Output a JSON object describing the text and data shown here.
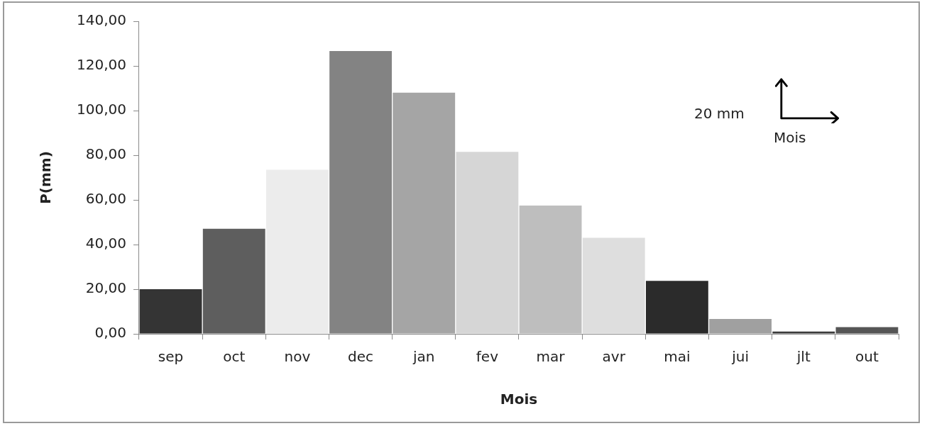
{
  "chart_data": {
    "type": "bar",
    "xlabel": "Mois",
    "ylabel": "P(mm)",
    "categories": [
      "sep",
      "oct",
      "nov",
      "dec",
      "jan",
      "fev",
      "mar",
      "avr",
      "mai",
      "jui",
      "jlt",
      "out"
    ],
    "values": [
      20.0,
      47.1,
      73.5,
      126.7,
      108.0,
      81.5,
      57.5,
      43.0,
      23.7,
      6.7,
      1.0,
      3.0
    ],
    "colors": [
      "#343434",
      "#5e5e5e",
      "#ececec",
      "#838383",
      "#a5a5a5",
      "#d6d6d6",
      "#bebebe",
      "#dedede",
      "#2b2b2b",
      "#a0a0a0",
      "#3a3a3a",
      "#555555"
    ],
    "ylim": [
      0,
      140
    ],
    "yticks": [
      {
        "value": 0,
        "label": "0,00"
      },
      {
        "value": 20,
        "label": "20,00"
      },
      {
        "value": 40,
        "label": "40,00"
      },
      {
        "value": 60,
        "label": "60,00"
      },
      {
        "value": 80,
        "label": "80,00"
      },
      {
        "value": 100,
        "label": "100,00"
      },
      {
        "value": 120,
        "label": "120,00"
      },
      {
        "value": 140,
        "label": "140,00"
      }
    ],
    "grid": false,
    "legend": false,
    "annotations": [
      "20 mm",
      "Mois"
    ]
  }
}
